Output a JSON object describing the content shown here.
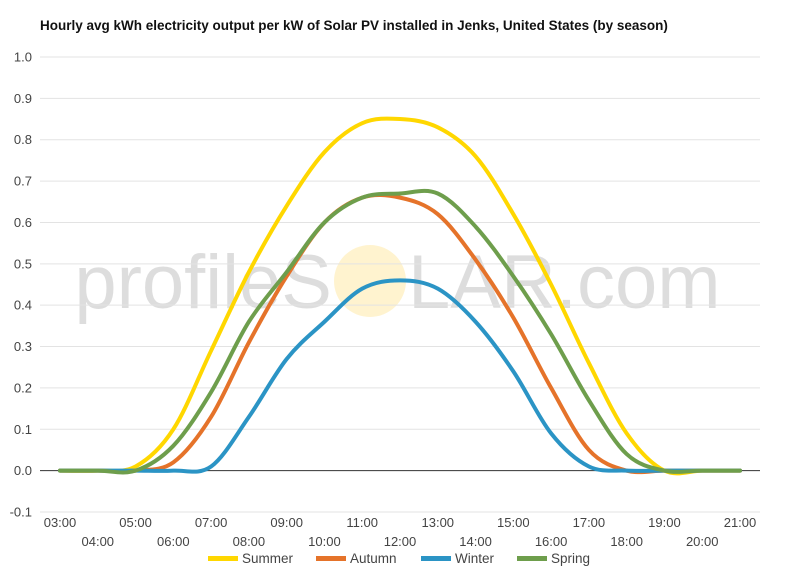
{
  "chart_data": {
    "type": "line",
    "title": "Hourly avg kWh electricity output per kW of Solar PV installed in Jenks, United States (by season)",
    "xlabel": "",
    "ylabel": "",
    "ylim": [
      -0.1,
      1.0
    ],
    "grid": true,
    "legend_position": "bottom",
    "y_ticks": [
      "-0.1",
      "0.0",
      "0.1",
      "0.2",
      "0.3",
      "0.4",
      "0.5",
      "0.6",
      "0.7",
      "0.8",
      "0.9",
      "1.0"
    ],
    "x": [
      "03:00",
      "04:00",
      "05:00",
      "06:00",
      "07:00",
      "08:00",
      "09:00",
      "10:00",
      "11:00",
      "12:00",
      "13:00",
      "14:00",
      "15:00",
      "16:00",
      "17:00",
      "18:00",
      "19:00",
      "20:00",
      "21:00"
    ],
    "series": [
      {
        "name": "Summer",
        "color": "#FFD700",
        "values": [
          0.0,
          0.0,
          0.01,
          0.1,
          0.29,
          0.48,
          0.64,
          0.77,
          0.84,
          0.85,
          0.83,
          0.76,
          0.62,
          0.45,
          0.26,
          0.09,
          0.0,
          0.0,
          0.0
        ]
      },
      {
        "name": "Autumn",
        "color": "#E5732A",
        "values": [
          0.0,
          0.0,
          0.0,
          0.02,
          0.13,
          0.31,
          0.47,
          0.6,
          0.66,
          0.66,
          0.62,
          0.51,
          0.37,
          0.2,
          0.05,
          0.0,
          0.0,
          0.0,
          0.0
        ]
      },
      {
        "name": "Winter",
        "color": "#2B94C5",
        "values": [
          0.0,
          0.0,
          0.0,
          0.0,
          0.01,
          0.13,
          0.27,
          0.36,
          0.44,
          0.46,
          0.44,
          0.36,
          0.24,
          0.09,
          0.01,
          0.0,
          0.0,
          0.0,
          0.0
        ]
      },
      {
        "name": "Spring",
        "color": "#6E9E4C",
        "values": [
          0.0,
          0.0,
          0.0,
          0.06,
          0.19,
          0.36,
          0.48,
          0.6,
          0.66,
          0.67,
          0.67,
          0.59,
          0.47,
          0.33,
          0.17,
          0.04,
          0.0,
          0.0,
          0.0
        ]
      }
    ]
  },
  "watermark": {
    "text_left": "profileS",
    "text_right": "LAR.com"
  }
}
